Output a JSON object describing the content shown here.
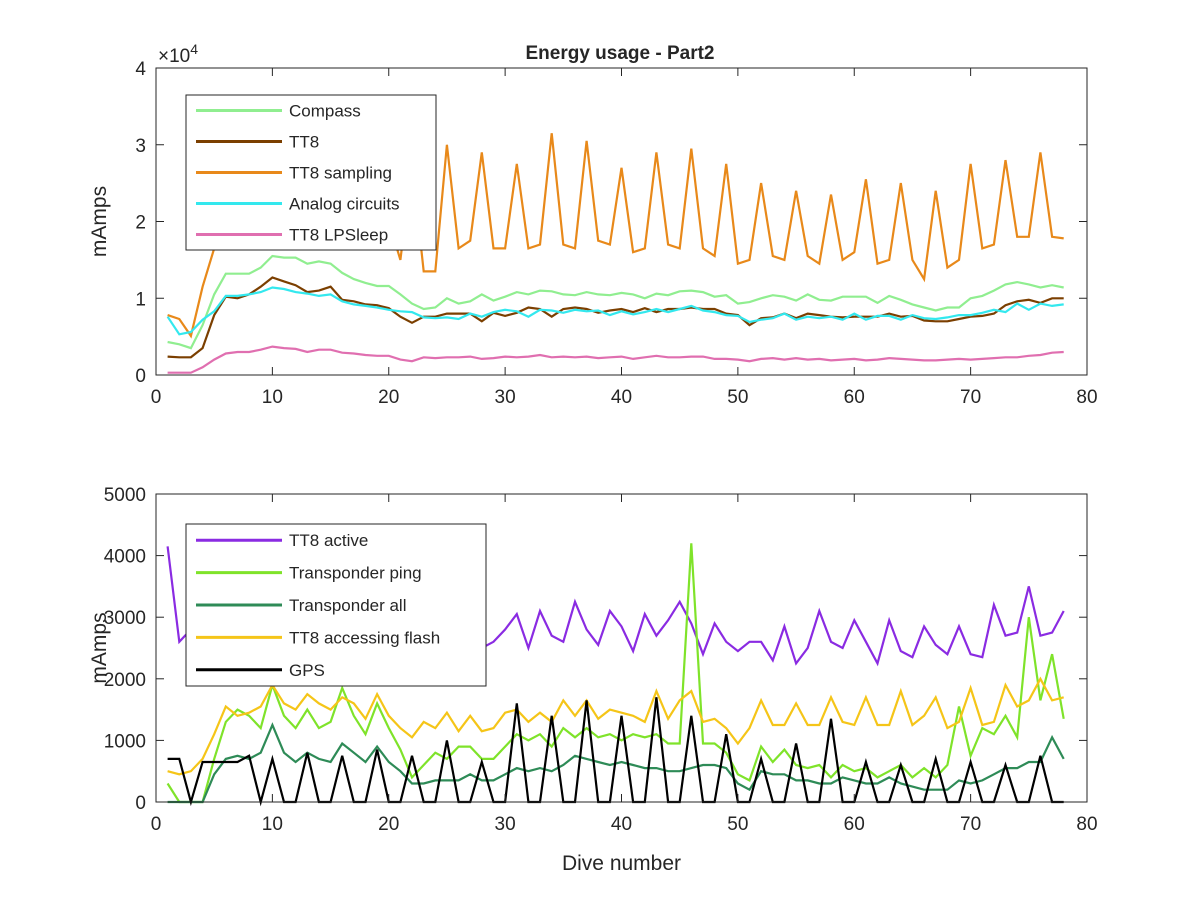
{
  "title": "Energy usage - Part2",
  "chart_data": [
    {
      "type": "line",
      "title": "Energy usage - Part2",
      "xlabel": "",
      "ylabel": "mAmps",
      "xlim": [
        0,
        80
      ],
      "ylim": [
        0,
        40000
      ],
      "xticks": [
        0,
        10,
        20,
        30,
        40,
        50,
        60,
        70,
        80
      ],
      "yticks": [
        0,
        10000,
        20000,
        30000,
        40000
      ],
      "ytick_labels": [
        "0",
        "1",
        "2",
        "3",
        "4"
      ],
      "exponent_label": "×10",
      "exponent_power": "4",
      "grid": false,
      "legend_position": "top-left",
      "x": [
        1,
        2,
        3,
        4,
        5,
        6,
        7,
        8,
        9,
        10,
        11,
        12,
        13,
        14,
        15,
        16,
        17,
        18,
        19,
        20,
        21,
        22,
        23,
        24,
        25,
        26,
        27,
        28,
        29,
        30,
        31,
        32,
        33,
        34,
        35,
        36,
        37,
        38,
        39,
        40,
        41,
        42,
        43,
        44,
        45,
        46,
        47,
        48,
        49,
        50,
        51,
        52,
        53,
        54,
        55,
        56,
        57,
        58,
        59,
        60,
        61,
        62,
        63,
        64,
        65,
        66,
        67,
        68,
        69,
        70,
        71,
        72,
        73,
        74,
        75,
        76,
        77,
        78
      ],
      "series": [
        {
          "name": "Compass",
          "color": "#90ee90",
          "values": [
            4300,
            4000,
            3500,
            6500,
            10500,
            13200,
            13200,
            13200,
            14000,
            15500,
            15300,
            15300,
            14500,
            14800,
            14500,
            13300,
            12500,
            12000,
            11600,
            11600,
            10500,
            9300,
            8600,
            8800,
            10000,
            9300,
            9600,
            10500,
            9700,
            10200,
            10800,
            10500,
            11000,
            10900,
            10500,
            10400,
            10800,
            10500,
            10400,
            10700,
            10500,
            10000,
            10600,
            10400,
            10900,
            11000,
            10800,
            10200,
            10400,
            9300,
            9500,
            10000,
            10400,
            10200,
            9700,
            10500,
            9800,
            9700,
            10200,
            10200,
            10200,
            9400,
            10300,
            9800,
            9200,
            8800,
            8400,
            8800,
            8800,
            10000,
            10300,
            11000,
            11800,
            12100,
            11800,
            11400,
            11700,
            11400
          ]
        },
        {
          "name": "TT8",
          "color": "#7b3f00",
          "values": [
            2400,
            2300,
            2300,
            3500,
            7800,
            10200,
            10000,
            10500,
            11500,
            12700,
            12200,
            11700,
            10800,
            11000,
            11500,
            9800,
            9600,
            9200,
            9100,
            8700,
            7600,
            6800,
            7600,
            7600,
            8000,
            8000,
            8000,
            7000,
            8100,
            7700,
            8100,
            8800,
            8600,
            7600,
            8600,
            8800,
            8600,
            8100,
            8400,
            8600,
            8200,
            8700,
            8200,
            8600,
            8600,
            8800,
            8600,
            8600,
            8000,
            7800,
            6500,
            7400,
            7500,
            8000,
            7400,
            8000,
            7800,
            7600,
            7500,
            7600,
            7600,
            7600,
            8000,
            7600,
            7700,
            7100,
            7000,
            7000,
            7300,
            7600,
            7700,
            8000,
            9100,
            9600,
            9800,
            9400,
            10000,
            10000
          ]
        },
        {
          "name": "TT8 sampling",
          "color": "#e8891a",
          "values": [
            7800,
            7300,
            5100,
            11500,
            16500,
            19500,
            20000,
            20000,
            24000,
            31000,
            30500,
            27500,
            31000,
            26000,
            30000,
            31500,
            21500,
            25500,
            24000,
            20000,
            15000,
            27500,
            13500,
            13500,
            30000,
            16500,
            17500,
            29000,
            16500,
            16500,
            27500,
            16500,
            17000,
            31500,
            17000,
            16500,
            30500,
            17500,
            17000,
            27000,
            16000,
            16500,
            29000,
            17000,
            16500,
            29500,
            16500,
            15500,
            27500,
            14500,
            15000,
            25000,
            15500,
            15000,
            24000,
            15500,
            14500,
            23500,
            15000,
            16000,
            25500,
            14500,
            15000,
            25000,
            15000,
            12500,
            24000,
            14000,
            15000,
            27500,
            16500,
            17000,
            28000,
            18000,
            18000,
            29000,
            18000,
            17800
          ]
        },
        {
          "name": "Analog circuits",
          "color": "#33e8ee",
          "values": [
            7600,
            5300,
            5600,
            7200,
            8300,
            10300,
            10300,
            10500,
            10800,
            11400,
            11200,
            10800,
            10600,
            10300,
            10500,
            9600,
            9200,
            9000,
            8800,
            8500,
            8300,
            8200,
            7500,
            7400,
            7500,
            7300,
            8000,
            7600,
            8200,
            8500,
            8300,
            7600,
            8500,
            8400,
            8100,
            8500,
            8300,
            8400,
            7800,
            8300,
            7900,
            8200,
            8600,
            8200,
            8600,
            9000,
            8400,
            8200,
            7800,
            7700,
            6900,
            7200,
            7400,
            8000,
            7200,
            7600,
            7400,
            7600,
            7200,
            8000,
            7200,
            7700,
            7700,
            7200,
            7800,
            7400,
            7300,
            7500,
            7800,
            7800,
            8100,
            8500,
            8200,
            9300,
            8500,
            9300,
            9000,
            9200
          ]
        },
        {
          "name": "TT8 LPSleep",
          "color": "#e06fb0",
          "values": [
            300,
            300,
            300,
            1000,
            2000,
            2800,
            3000,
            3000,
            3300,
            3700,
            3500,
            3400,
            3000,
            3300,
            3300,
            2900,
            2800,
            2600,
            2500,
            2500,
            2000,
            1800,
            2300,
            2200,
            2300,
            2300,
            2400,
            2100,
            2200,
            2400,
            2300,
            2400,
            2600,
            2300,
            2400,
            2300,
            2400,
            2200,
            2300,
            2400,
            2100,
            2300,
            2500,
            2300,
            2300,
            2400,
            2400,
            2100,
            2100,
            2000,
            1800,
            2100,
            2200,
            2000,
            2200,
            2000,
            2100,
            1900,
            2000,
            2100,
            1900,
            2000,
            2200,
            2100,
            2000,
            1900,
            1900,
            2000,
            2100,
            2000,
            2100,
            2200,
            2300,
            2300,
            2500,
            2600,
            2900,
            3000
          ]
        }
      ]
    },
    {
      "type": "line",
      "title": "",
      "xlabel": "Dive number",
      "ylabel": "mAmps",
      "xlim": [
        0,
        80
      ],
      "ylim": [
        0,
        5000
      ],
      "xticks": [
        0,
        10,
        20,
        30,
        40,
        50,
        60,
        70,
        80
      ],
      "yticks": [
        0,
        1000,
        2000,
        3000,
        4000,
        5000
      ],
      "ytick_labels": [
        "0",
        "1000",
        "2000",
        "3000",
        "4000",
        "5000"
      ],
      "grid": false,
      "legend_position": "top-left",
      "x": [
        1,
        2,
        3,
        4,
        5,
        6,
        7,
        8,
        9,
        10,
        11,
        12,
        13,
        14,
        15,
        16,
        17,
        18,
        19,
        20,
        21,
        22,
        23,
        24,
        25,
        26,
        27,
        28,
        29,
        30,
        31,
        32,
        33,
        34,
        35,
        36,
        37,
        38,
        39,
        40,
        41,
        42,
        43,
        44,
        45,
        46,
        47,
        48,
        49,
        50,
        51,
        52,
        53,
        54,
        55,
        56,
        57,
        58,
        59,
        60,
        61,
        62,
        63,
        64,
        65,
        66,
        67,
        68,
        69,
        70,
        71,
        72,
        73,
        74,
        75,
        76,
        77,
        78
      ],
      "series": [
        {
          "name": "TT8 active",
          "color": "#8a2be2",
          "values": [
            4150,
            2600,
            2800,
            3100,
            3300,
            3200,
            3100,
            3400,
            3200,
            3150,
            3300,
            3250,
            3100,
            3050,
            3000,
            3050,
            2900,
            2850,
            2900,
            2800,
            2600,
            2500,
            2600,
            2500,
            2600,
            2500,
            2700,
            2500,
            2600,
            2800,
            3050,
            2500,
            3100,
            2700,
            2600,
            3250,
            2800,
            2550,
            3100,
            2850,
            2450,
            3050,
            2700,
            2950,
            3250,
            2900,
            2400,
            2900,
            2600,
            2450,
            2600,
            2600,
            2300,
            2850,
            2250,
            2500,
            3100,
            2600,
            2500,
            2950,
            2600,
            2250,
            2950,
            2450,
            2350,
            2850,
            2550,
            2400,
            2850,
            2400,
            2350,
            3200,
            2700,
            2750,
            3500,
            2700,
            2750,
            3100
          ]
        },
        {
          "name": "Transponder ping",
          "color": "#7fe32a",
          "values": [
            300,
            0,
            0,
            0,
            700,
            1300,
            1500,
            1400,
            1200,
            1900,
            1400,
            1200,
            1500,
            1200,
            1300,
            1850,
            1400,
            1100,
            1600,
            1200,
            850,
            400,
            600,
            800,
            700,
            900,
            900,
            700,
            700,
            900,
            1100,
            1000,
            1100,
            900,
            1200,
            1050,
            1200,
            1050,
            1100,
            1000,
            1100,
            1050,
            1100,
            950,
            950,
            4200,
            950,
            950,
            800,
            450,
            350,
            900,
            650,
            850,
            600,
            550,
            600,
            400,
            600,
            500,
            550,
            400,
            500,
            600,
            400,
            550,
            400,
            600,
            1550,
            750,
            1200,
            1100,
            1400,
            1050,
            3000,
            1650,
            2400,
            1350
          ]
        },
        {
          "name": "Transponder all",
          "color": "#2e8b57",
          "values": [
            0,
            0,
            0,
            0,
            450,
            700,
            750,
            700,
            800,
            1250,
            800,
            650,
            800,
            700,
            650,
            950,
            800,
            650,
            900,
            650,
            500,
            300,
            300,
            350,
            350,
            350,
            450,
            350,
            350,
            450,
            550,
            500,
            550,
            500,
            600,
            750,
            700,
            650,
            600,
            650,
            600,
            550,
            550,
            500,
            500,
            550,
            600,
            600,
            550,
            300,
            200,
            500,
            450,
            450,
            350,
            350,
            300,
            300,
            400,
            350,
            300,
            300,
            400,
            300,
            250,
            200,
            200,
            200,
            350,
            300,
            350,
            450,
            550,
            550,
            650,
            650,
            1050,
            700
          ]
        },
        {
          "name": "TT8 accessing flash",
          "color": "#f5c518",
          "values": [
            500,
            450,
            500,
            700,
            1100,
            1550,
            1400,
            1450,
            1550,
            1900,
            1600,
            1500,
            1750,
            1600,
            1500,
            1700,
            1600,
            1350,
            1750,
            1400,
            1200,
            1050,
            1300,
            1200,
            1450,
            1150,
            1400,
            1150,
            1200,
            1450,
            1500,
            1300,
            1450,
            1300,
            1650,
            1400,
            1650,
            1350,
            1500,
            1450,
            1400,
            1300,
            1800,
            1350,
            1650,
            1800,
            1300,
            1350,
            1200,
            950,
            1200,
            1650,
            1250,
            1250,
            1600,
            1250,
            1250,
            1700,
            1300,
            1250,
            1700,
            1250,
            1250,
            1800,
            1250,
            1400,
            1700,
            1200,
            1300,
            1850,
            1250,
            1300,
            1900,
            1550,
            1650,
            2000,
            1650,
            1700
          ]
        },
        {
          "name": "GPS",
          "color": "#000000",
          "values": [
            700,
            700,
            0,
            650,
            650,
            650,
            650,
            750,
            0,
            700,
            0,
            0,
            800,
            0,
            0,
            750,
            0,
            0,
            850,
            0,
            0,
            750,
            0,
            0,
            1000,
            0,
            0,
            650,
            0,
            0,
            1600,
            0,
            0,
            1400,
            0,
            0,
            1650,
            0,
            0,
            1400,
            0,
            0,
            1700,
            0,
            0,
            1400,
            0,
            0,
            1100,
            0,
            0,
            700,
            0,
            0,
            950,
            0,
            0,
            1350,
            0,
            0,
            650,
            0,
            0,
            600,
            0,
            0,
            700,
            0,
            0,
            650,
            0,
            0,
            600,
            0,
            0,
            750,
            0,
            0
          ]
        }
      ]
    }
  ]
}
